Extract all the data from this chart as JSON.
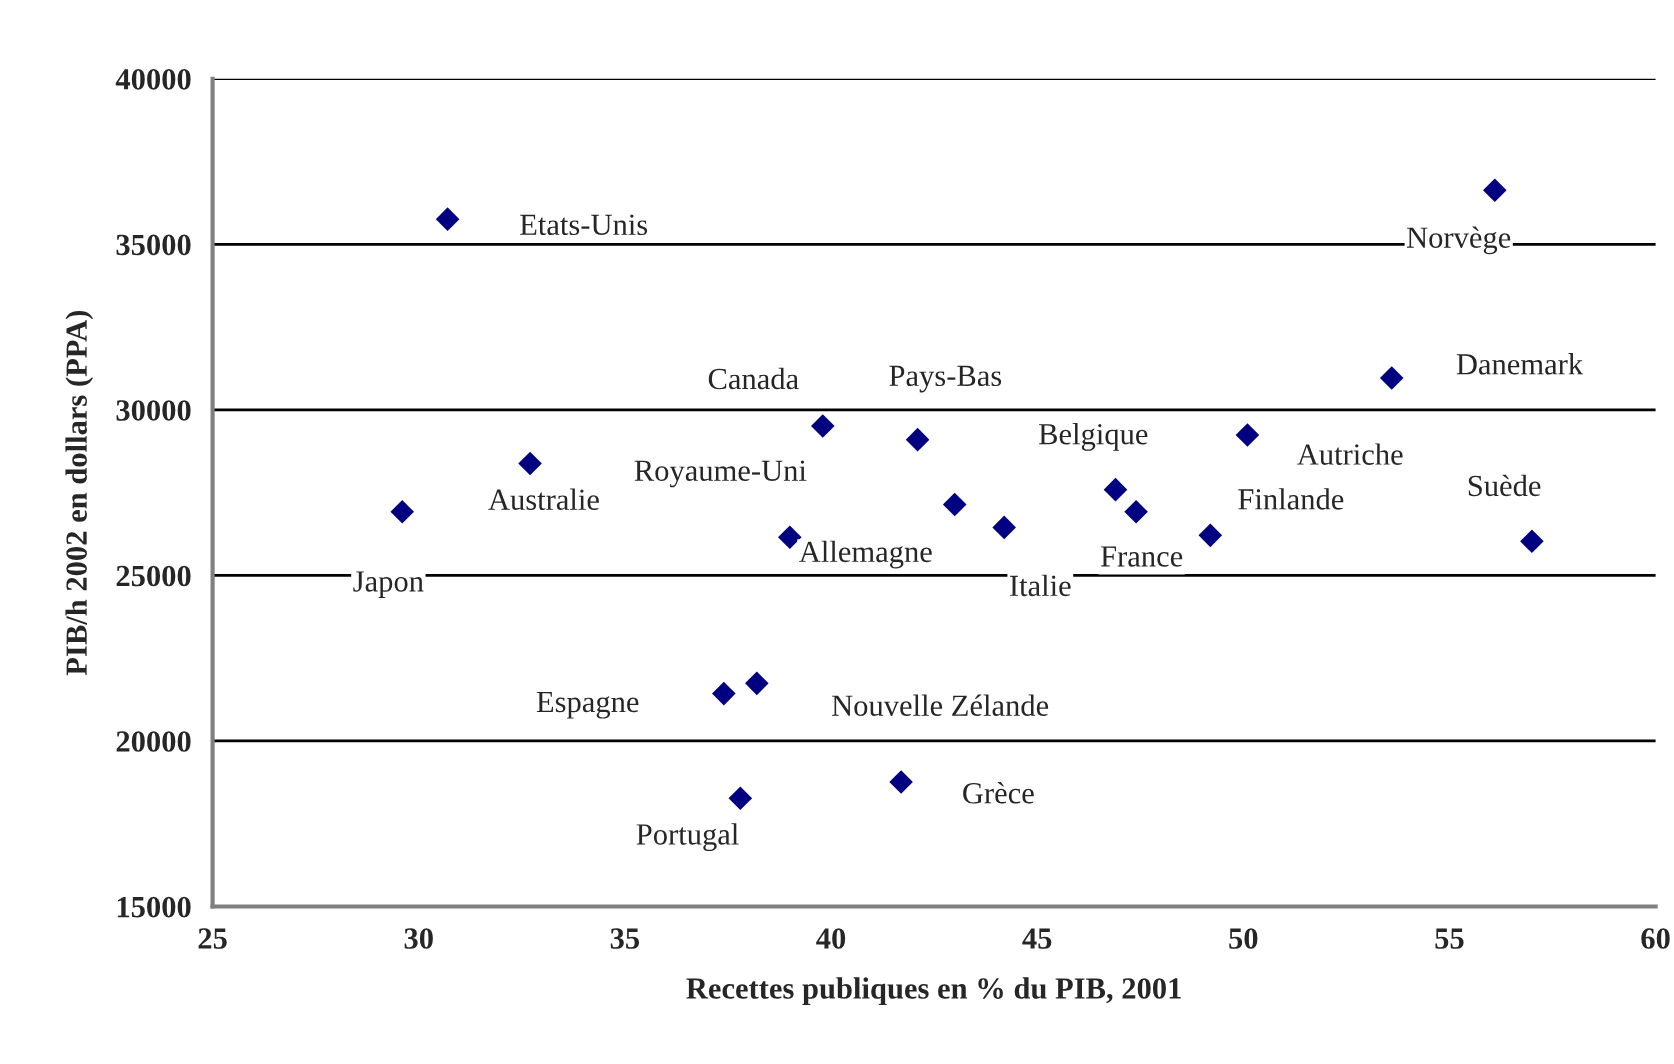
{
  "chart_data": {
    "type": "scatter",
    "xlabel": "Recettes publiques en % du PIB, 2001",
    "ylabel": "PIB/h 2002 en dollars (PPA)",
    "x": [
      30.7,
      29.6,
      32.7,
      39.8,
      42.1,
      39.0,
      43.0,
      44.2,
      46.9,
      47.4,
      49.2,
      50.1,
      53.6,
      56.1,
      57.0,
      37.4,
      38.2,
      37.8,
      41.7
    ],
    "series": [
      {
        "color": "#000080",
        "values": [
          35760,
          26920,
          28380,
          29510,
          29100,
          26150,
          27140,
          26450,
          27590,
          26920,
          26210,
          29240,
          30960,
          36630,
          26030,
          21430,
          21740,
          18270,
          18760
        ]
      }
    ],
    "marker": "diamond",
    "xlim": [
      25,
      60
    ],
    "xticks": [
      25,
      30,
      35,
      40,
      45,
      50,
      55,
      60
    ],
    "ylim": [
      15000,
      40000
    ],
    "yticks": [
      15000,
      20000,
      25000,
      30000,
      35000,
      40000
    ],
    "grid": "y",
    "legend": false,
    "annotations": [
      {
        "text": "Etats-Unis",
        "x": 30.7,
        "y": 35760
      },
      {
        "text": "Japon",
        "x": 29.6,
        "y": 26920
      },
      {
        "text": "Australie",
        "x": 32.7,
        "y": 28380
      },
      {
        "text": "Canada",
        "x": 39.8,
        "y": 29510
      },
      {
        "text": "Pays-Bas",
        "x": 42.1,
        "y": 29100
      },
      {
        "text": "Royaume-Uni",
        "x": 39.0,
        "y": 26150
      },
      {
        "text": "Allemagne",
        "x": 43.0,
        "y": 27140
      },
      {
        "text": "Italie",
        "x": 44.2,
        "y": 26450
      },
      {
        "text": "Belgique",
        "x": 46.9,
        "y": 27590
      },
      {
        "text": "France",
        "x": 47.4,
        "y": 26920
      },
      {
        "text": "Finlande",
        "x": 49.2,
        "y": 26210
      },
      {
        "text": "Autriche",
        "x": 50.1,
        "y": 29240
      },
      {
        "text": "Danemark",
        "x": 53.6,
        "y": 30960
      },
      {
        "text": "Norvège",
        "x": 56.1,
        "y": 36630
      },
      {
        "text": "Suède",
        "x": 57.0,
        "y": 26030
      },
      {
        "text": "Espagne",
        "x": 37.4,
        "y": 21430
      },
      {
        "text": "Nouvelle Zélande",
        "x": 38.2,
        "y": 21740
      },
      {
        "text": "Portugal",
        "x": 37.8,
        "y": 18270
      },
      {
        "text": "Grèce",
        "x": 41.7,
        "y": 18760
      }
    ]
  }
}
